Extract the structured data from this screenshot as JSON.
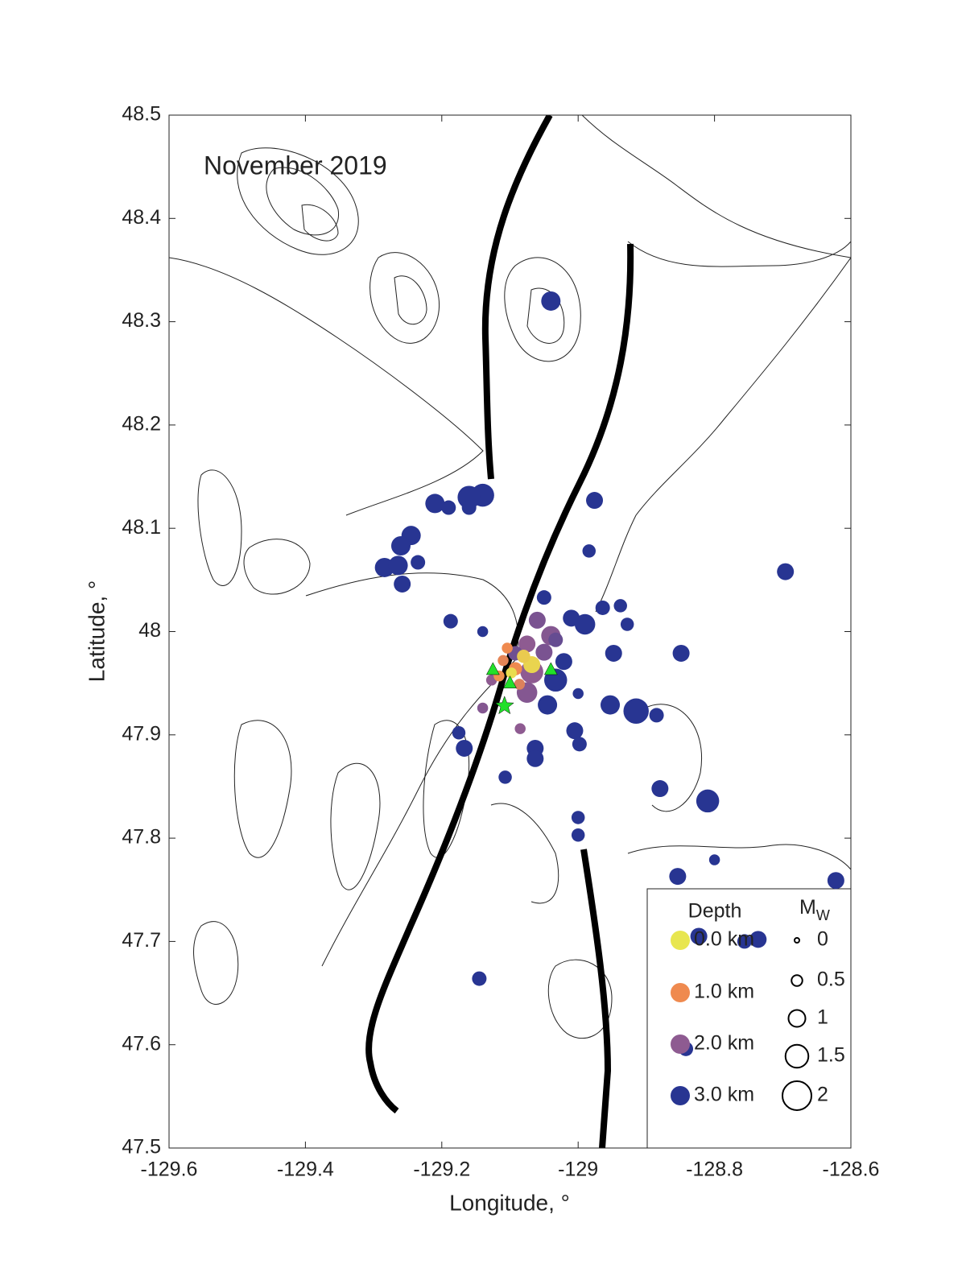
{
  "chart_data": {
    "type": "scatter",
    "annotation": "November 2019",
    "x_label": "Longitude, °",
    "y_label": "Latitude, °",
    "xlim": [
      -129.6,
      -128.6
    ],
    "ylim": [
      47.5,
      48.5
    ],
    "xticks": [
      -129.6,
      -129.4,
      -129.2,
      -129,
      -128.8,
      -128.6
    ],
    "yticks": [
      47.5,
      47.6,
      47.7,
      47.8,
      47.9,
      48,
      48.1,
      48.2,
      48.3,
      48.4,
      48.5
    ],
    "x": [
      -129.04,
      -129.14,
      -129.16,
      -129.16,
      -129.21,
      -129.19,
      -128.976,
      -129.245,
      -129.26,
      -129.284,
      -129.264,
      -129.258,
      -129.235,
      -128.984,
      -128.696,
      -129.187,
      -129.14,
      -129.05,
      -129.01,
      -128.99,
      -128.964,
      -128.938,
      -128.928,
      -128.948,
      -128.849,
      -129.021,
      -129.033,
      -129.045,
      -129.0,
      -128.953,
      -128.915,
      -128.885,
      -129.175,
      -129.167,
      -129.107,
      -129.063,
      -129.063,
      -129.005,
      -128.998,
      -128.88,
      -128.81,
      -129.0,
      -129.0,
      -128.8,
      -128.854,
      -128.622,
      -128.823,
      -128.756,
      -128.736,
      -129.145,
      -128.842,
      -129.06,
      -129.04,
      -129.075,
      -129.092,
      -129.068,
      -129.075,
      -129.05,
      -129.085,
      -129.14,
      -129.127,
      -129.033,
      -129.092,
      -129.11,
      -129.086,
      -129.116,
      -129.104,
      -129.068,
      -129.08,
      -129.098
    ],
    "y": [
      48.32,
      48.132,
      48.13,
      48.12,
      48.124,
      48.12,
      48.127,
      48.093,
      48.083,
      48.062,
      48.064,
      48.046,
      48.067,
      48.078,
      48.058,
      48.01,
      48.0,
      48.033,
      48.013,
      48.007,
      48.023,
      48.025,
      48.007,
      47.979,
      47.979,
      47.971,
      47.953,
      47.929,
      47.94,
      47.929,
      47.923,
      47.919,
      47.902,
      47.887,
      47.859,
      47.887,
      47.877,
      47.904,
      47.891,
      47.848,
      47.836,
      47.82,
      47.803,
      47.779,
      47.763,
      47.759,
      47.705,
      47.7,
      47.702,
      47.664,
      47.596,
      48.011,
      47.996,
      47.988,
      47.979,
      47.961,
      47.941,
      47.98,
      47.906,
      47.926,
      47.953,
      47.992,
      47.964,
      47.972,
      47.949,
      47.957,
      47.984,
      47.968,
      47.976,
      47.96
    ],
    "depth": [
      3,
      3,
      3,
      3,
      3,
      3,
      3,
      3,
      3,
      3,
      3,
      3,
      3,
      3,
      3,
      3,
      3,
      3,
      3,
      3,
      3,
      3,
      3,
      3,
      3,
      3,
      3,
      3,
      3,
      3,
      3,
      3,
      3,
      3,
      3,
      3,
      3,
      3,
      3,
      3,
      3,
      3,
      3,
      3,
      3,
      3,
      3,
      3,
      3,
      3,
      3,
      2.2,
      2.1,
      2,
      2.3,
      2,
      2.1,
      2.2,
      2,
      2.1,
      2,
      2.4,
      1,
      1.1,
      1.2,
      0.9,
      1,
      0.2,
      0.3,
      0.1
    ],
    "magnitude": [
      1.2,
      1.5,
      1.5,
      0.8,
      1.2,
      0.8,
      1,
      1.2,
      1.2,
      1.2,
      1.2,
      1,
      0.8,
      0.7,
      1,
      0.8,
      0.5,
      0.8,
      1,
      1.3,
      0.8,
      0.7,
      0.7,
      1,
      1,
      1,
      1.5,
      1.2,
      0.5,
      1.2,
      1.7,
      0.8,
      0.7,
      1,
      0.7,
      1,
      1,
      1,
      0.8,
      1,
      1.5,
      0.7,
      0.7,
      0.5,
      1,
      1,
      1,
      0.8,
      1,
      0.8,
      0.8,
      1,
      1.2,
      1,
      0.8,
      1.5,
      1.3,
      1,
      0.5,
      0.5,
      0.5,
      0.8,
      0.7,
      0.5,
      0.5,
      0.5,
      0.5,
      1,
      0.7,
      0.5
    ],
    "stations": {
      "x": [
        -129.125,
        -129.1,
        -129.04
      ],
      "y": [
        47.963,
        47.95,
        47.963
      ],
      "color": "#22e02a"
    },
    "star": {
      "x": [
        -129.108
      ],
      "y": [
        47.928
      ],
      "color": "#22e02a"
    },
    "depth_legend": {
      "title": "Depth",
      "entries": [
        {
          "label": "0.0 km",
          "value": 0,
          "color": "#e8e64f"
        },
        {
          "label": "1.0 km",
          "value": 1,
          "color": "#ef8a4f"
        },
        {
          "label": "2.0 km",
          "value": 2,
          "color": "#8e5b91"
        },
        {
          "label": "3.0 km",
          "value": 3,
          "color": "#283592"
        }
      ]
    },
    "size_legend": {
      "title": "M",
      "title_subscript": "W",
      "values": [
        0,
        0.5,
        1,
        1.5,
        2
      ]
    }
  }
}
